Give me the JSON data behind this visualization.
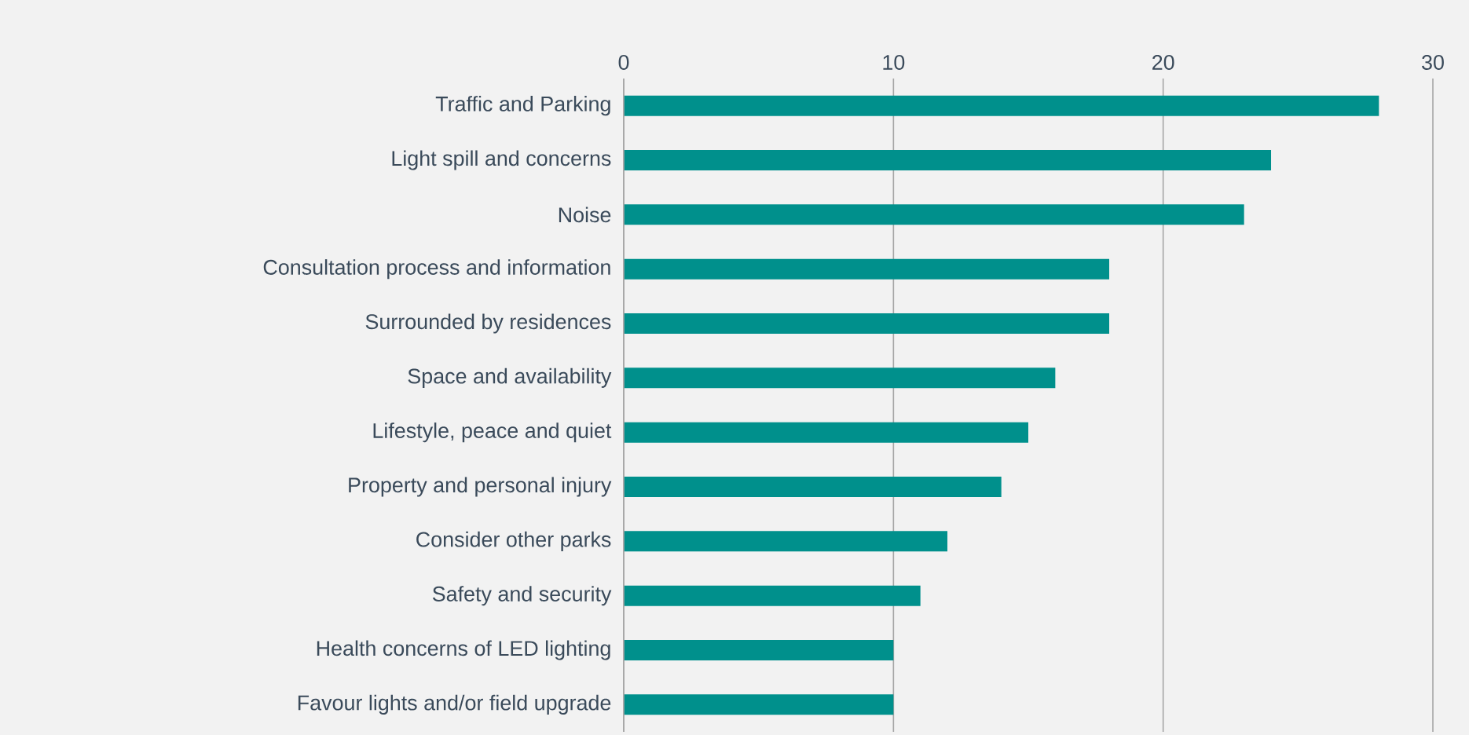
{
  "chart_data": {
    "type": "bar",
    "orientation": "horizontal",
    "categories": [
      "Traffic and Parking",
      "Light spill and concerns",
      "Noise",
      "Consultation process and information",
      "Surrounded by residences",
      "Space and availability",
      "Lifestyle, peace and quiet",
      "Property and personal injury",
      "Consider other parks",
      "Safety and security",
      "Health concerns of LED lighting",
      "Favour lights and/or field upgrade"
    ],
    "values": [
      28,
      24,
      23,
      18,
      18,
      16,
      15,
      14,
      12,
      11,
      10,
      10
    ],
    "color": "#00908c",
    "xlim": [
      0,
      30
    ],
    "xticks": [
      0,
      10,
      20,
      30
    ],
    "grid": "x"
  }
}
